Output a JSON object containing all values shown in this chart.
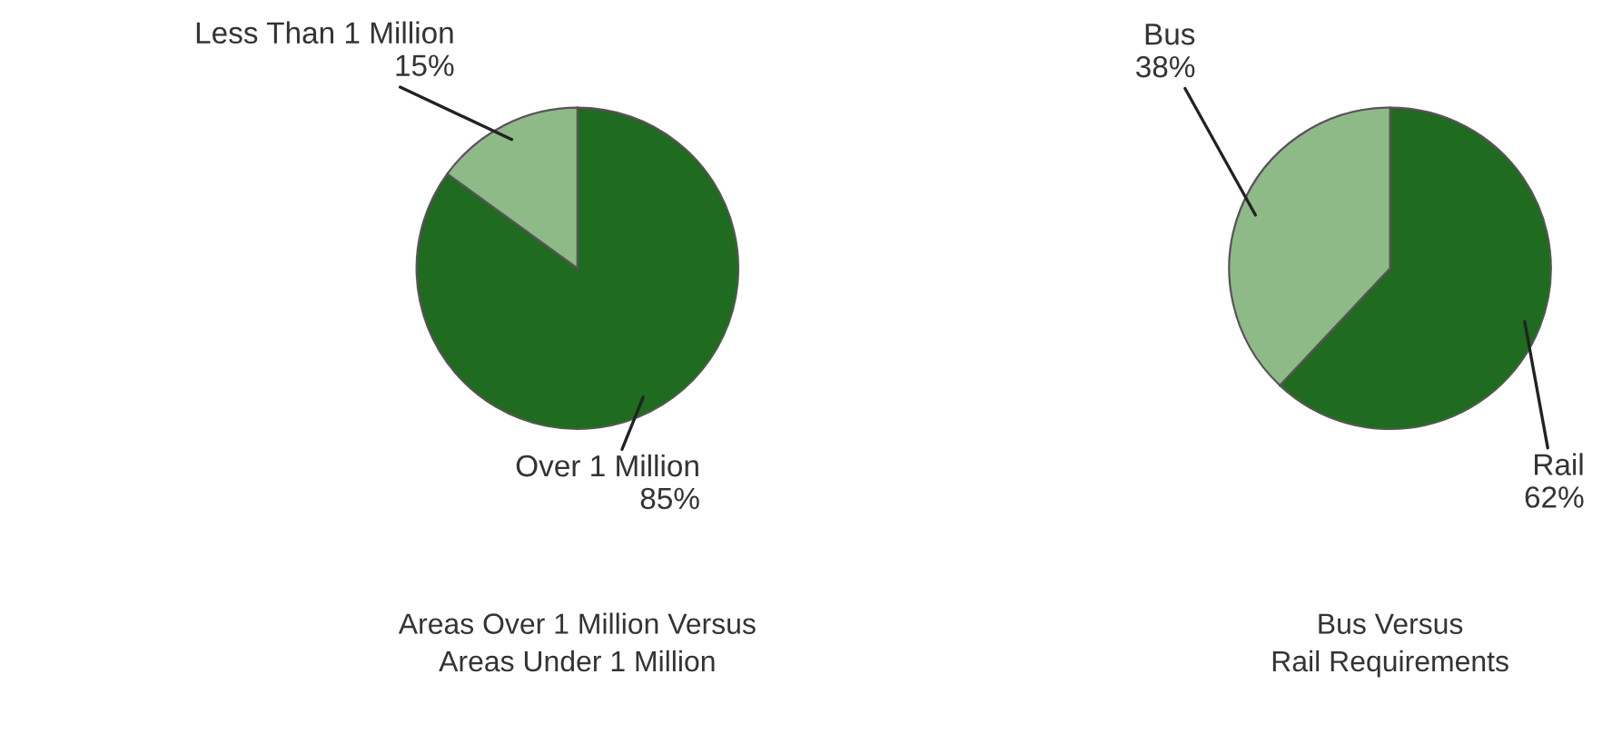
{
  "chart_data": [
    {
      "type": "pie",
      "title": "Areas Over 1 Million Versus\nAreas Under 1 Million",
      "categories": [
        "Over 1 Million",
        "Less Than 1 Million"
      ],
      "values": [
        85,
        15
      ],
      "colors": [
        "#1f6b1f",
        "#8dba86"
      ],
      "value_labels": [
        "85%",
        "15%"
      ]
    },
    {
      "type": "pie",
      "title": "Bus Versus\nRail Requirements",
      "categories": [
        "Rail",
        "Bus"
      ],
      "values": [
        62,
        38
      ],
      "colors": [
        "#1f6b1f",
        "#8dba86"
      ],
      "value_labels": [
        "62%",
        "38%"
      ]
    }
  ]
}
